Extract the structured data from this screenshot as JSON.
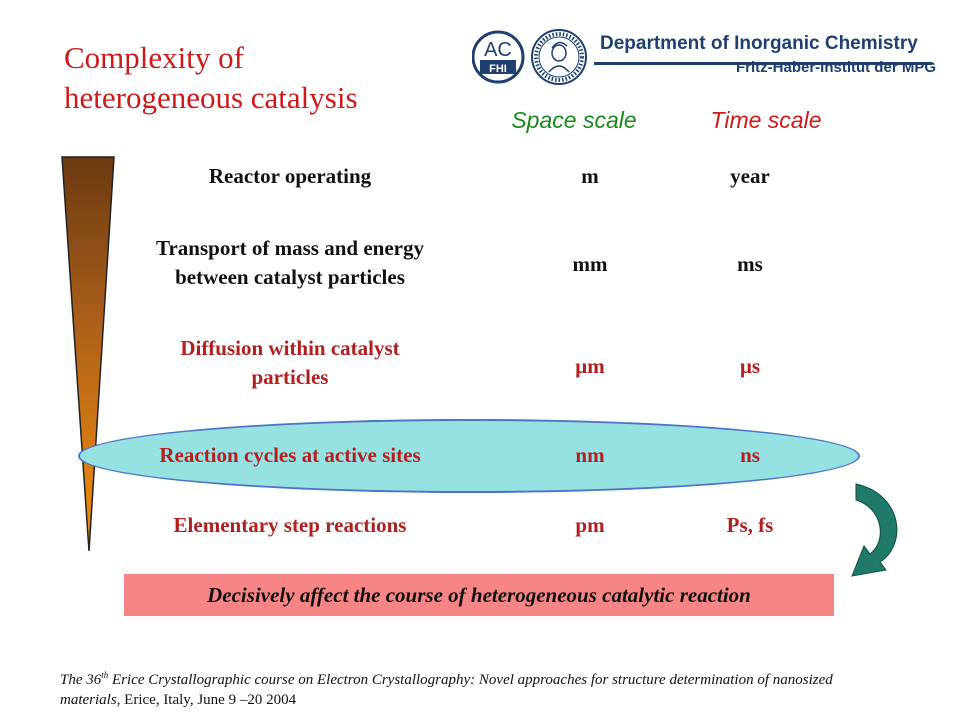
{
  "title": {
    "line1": "Complexity of",
    "line2": "heterogeneous catalysis"
  },
  "logo": {
    "ac_top": "AC",
    "ac_bottom": "FHI",
    "department": "Department of Inorganic Chemistry",
    "institute": "Fritz-Haber-Institut der MPG"
  },
  "headers": {
    "space": "Space scale",
    "time": "Time scale"
  },
  "levels": [
    {
      "label": "Reactor operating",
      "space": "m",
      "time": "year"
    },
    {
      "label_line1": "Transport of mass and energy",
      "label_line2": "between catalyst particles",
      "space": "mm",
      "time": "ms"
    },
    {
      "label_line1": "Diffusion within catalyst",
      "label_line2": "particles",
      "space": "μm",
      "time": "μs"
    },
    {
      "label": "Reaction cycles at active sites",
      "space": "nm",
      "time": "ns"
    },
    {
      "label": "Elementary step reactions",
      "space": "pm",
      "time": "Ps, fs"
    }
  ],
  "banner": "Decisively affect the course of heterogeneous catalytic reaction",
  "footer": {
    "part1": "The 36",
    "sup": "th",
    "part2": " Erice Crystallographic course on Electron Crystallography: Novel approaches for structure determination of nanosized materials,",
    "part3": " Erice, Italy, June 9 –20 2004"
  },
  "colors": {
    "title": "#cc1a1a",
    "space_header": "#1b8a1b",
    "time_header": "#cc1a1a",
    "highlight_fill": "#96e2e2",
    "banner_fill": "#f78585",
    "wedge_top": "#6b3a12",
    "wedge_bottom": "#f5900c",
    "arrow": "#1f7a6a",
    "logo_blue": "#1f3f6f"
  }
}
